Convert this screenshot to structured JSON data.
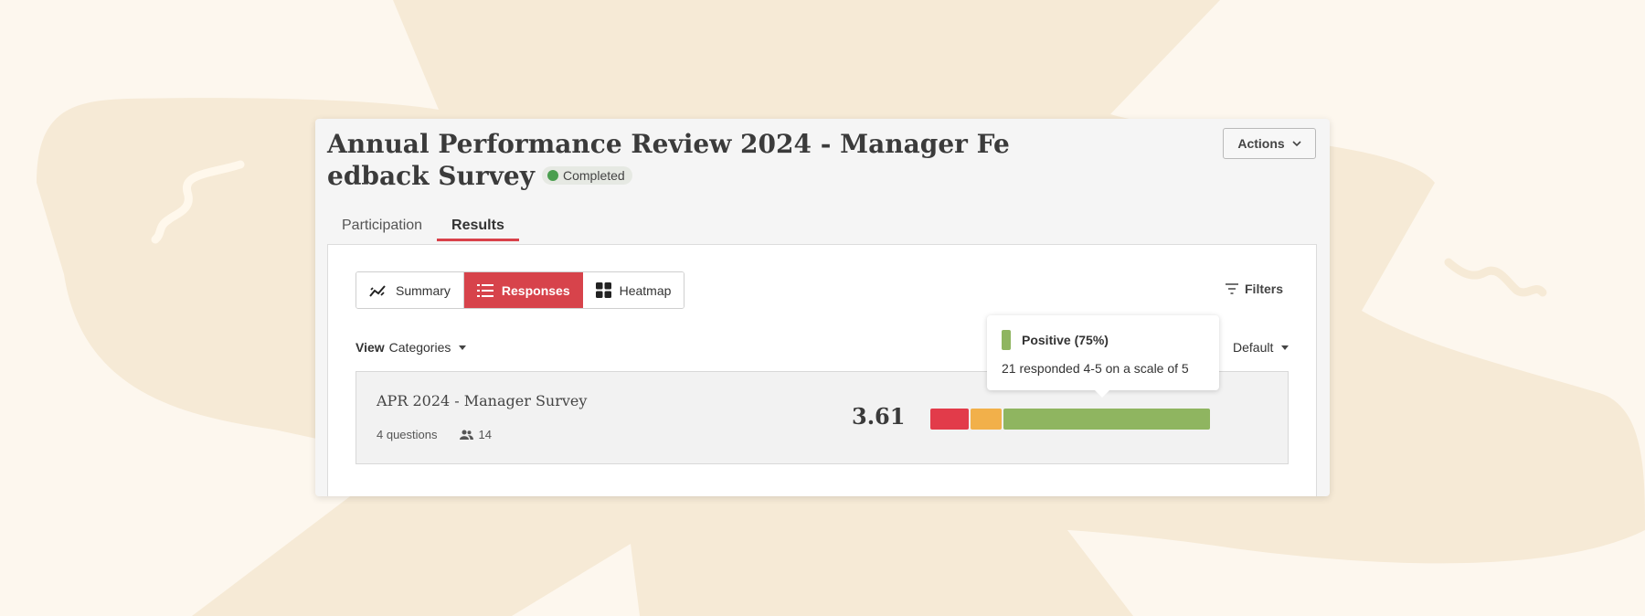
{
  "colors": {
    "background": "#fdf7ee",
    "accent": "#d7434b",
    "completed": "#4a9e4f",
    "negative": "#e23b4a",
    "neutral": "#f2b04a",
    "positive": "#8fb560"
  },
  "header": {
    "title": "Annual Performance Review 2024 - Manager Feedback Survey",
    "status": "Completed",
    "actions_label": "Actions"
  },
  "tabs": [
    {
      "label": "Participation",
      "active": false
    },
    {
      "label": "Results",
      "active": true
    }
  ],
  "toolbar": {
    "views": [
      {
        "label": "Summary",
        "icon": "trend-chart-icon",
        "active": false
      },
      {
        "label": "Responses",
        "icon": "list-icon",
        "active": true
      },
      {
        "label": "Heatmap",
        "icon": "grid-icon",
        "active": false
      }
    ],
    "filters_label": "Filters",
    "view_label": "View",
    "view_value": "Categories",
    "sort_value": "Default"
  },
  "survey": {
    "title": "APR 2024 - Manager Survey",
    "questions": "4 questions",
    "participants": "14",
    "score": "3.61",
    "distribution": {
      "negative": 0.14,
      "neutral": 0.11,
      "positive": 0.75
    }
  },
  "tooltip": {
    "title": "Positive (75%)",
    "body": "21 responded 4-5 on a scale of 5"
  }
}
